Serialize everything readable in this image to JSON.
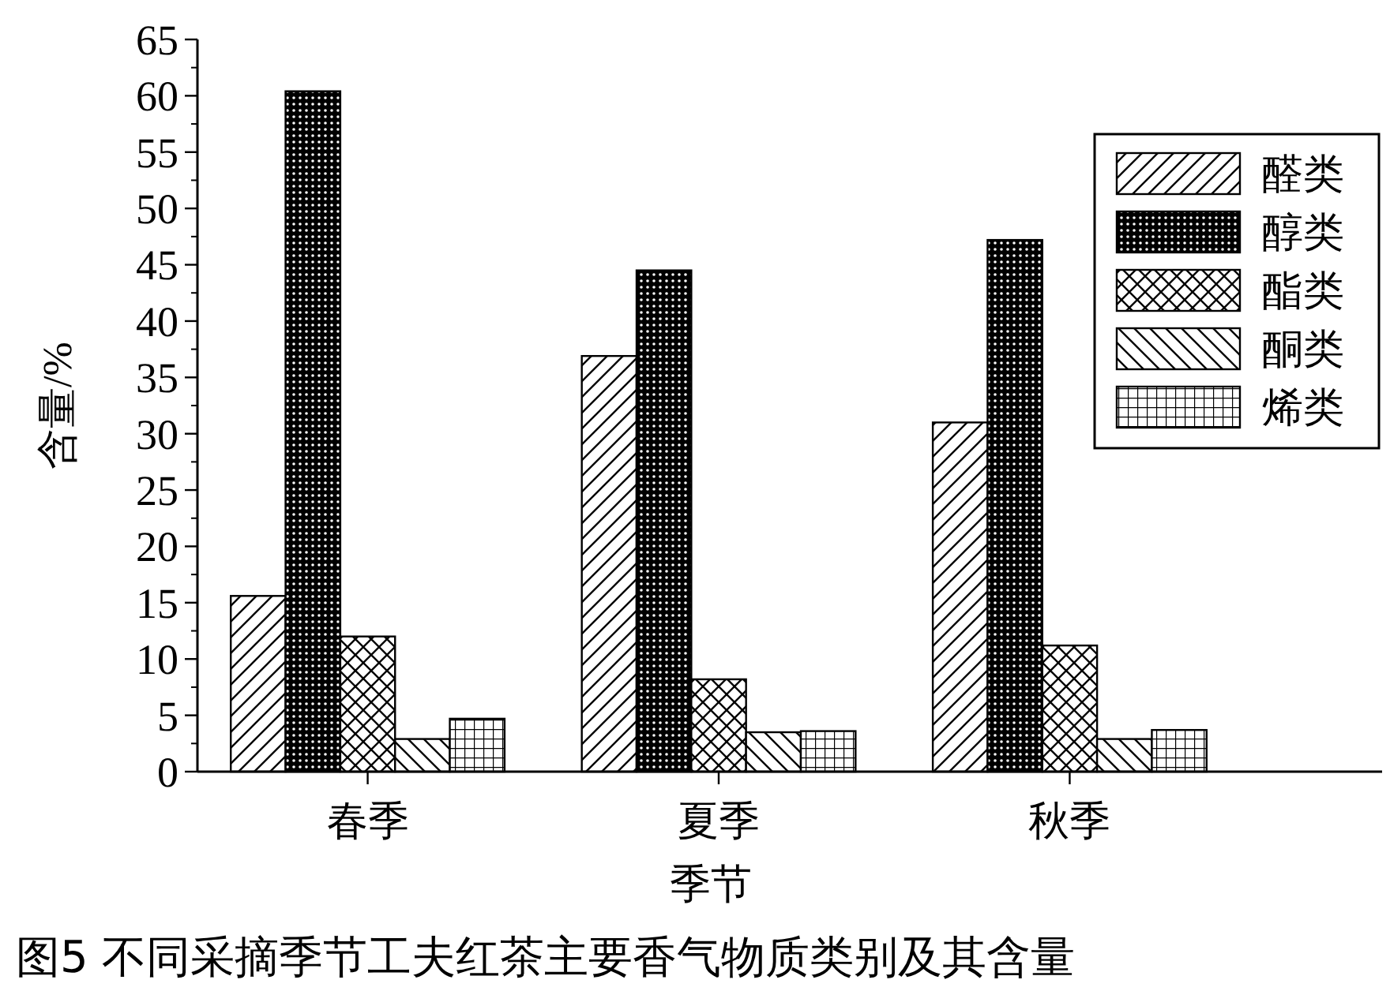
{
  "chart_data": {
    "type": "bar",
    "title": "图5  不同采摘季节工夫红茶主要香气物质类别及其含量",
    "xlabel": "季节",
    "ylabel": "含量/%",
    "categories": [
      "春季",
      "夏季",
      "秋季"
    ],
    "series": [
      {
        "name": "醛类",
        "color": "#000000",
        "values": [
          15.6,
          36.9,
          31.0
        ]
      },
      {
        "name": "醇类",
        "color": "#000000",
        "values": [
          60.4,
          44.5,
          47.2
        ]
      },
      {
        "name": "酯类",
        "color": "#000000",
        "values": [
          12.0,
          8.2,
          11.2
        ]
      },
      {
        "name": "酮类",
        "color": "#000000",
        "values": [
          2.9,
          3.5,
          2.9
        ]
      },
      {
        "name": "烯类",
        "color": "#000000",
        "values": [
          4.7,
          3.6,
          3.7
        ]
      }
    ],
    "ylim": [
      0,
      65
    ],
    "yticks": [
      0,
      5,
      10,
      15,
      20,
      25,
      30,
      35,
      40,
      45,
      50,
      55,
      60,
      65
    ],
    "grid": false,
    "legend": "top right"
  }
}
